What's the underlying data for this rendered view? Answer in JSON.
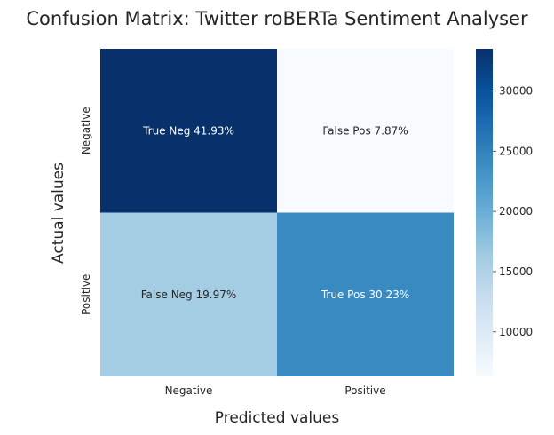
{
  "chart_data": {
    "type": "heatmap",
    "title": "Confusion Matrix: Twitter roBERTa Sentiment Analyser",
    "xlabel": "Predicted values",
    "ylabel": "Actual values",
    "x_categories": [
      "Negative",
      "Positive"
    ],
    "y_categories": [
      "Negative",
      "Positive"
    ],
    "annotations": [
      [
        "True Neg 41.93%",
        "False Pos 7.87%"
      ],
      [
        "False Neg 19.97%",
        "True Pos 30.23%"
      ]
    ],
    "values": [
      [
        33500,
        6300
      ],
      [
        15950,
        24150
      ]
    ],
    "colorbar": {
      "min": 6300,
      "max": 33500,
      "ticks": [
        10000,
        15000,
        20000,
        25000,
        30000
      ],
      "tick_labels": [
        "10000",
        "15000",
        "20000",
        "25000",
        "30000"
      ],
      "colormap": "Blues"
    }
  }
}
